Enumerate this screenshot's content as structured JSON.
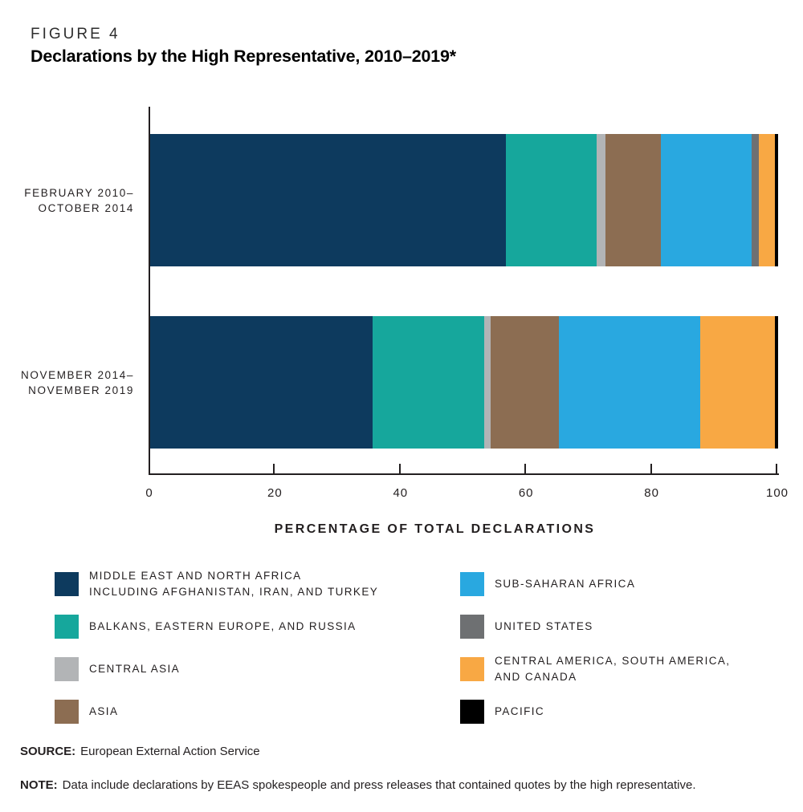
{
  "figure": {
    "label": "FIGURE 4",
    "title": "Declarations by the High Representative, 2010–2019*"
  },
  "chart_data": {
    "type": "bar",
    "orientation": "horizontal",
    "stacked": true,
    "grid": false,
    "legend_position": "bottom",
    "title": "Declarations by the High Representative, 2010–2019*",
    "xlabel": "PERCENTAGE OF TOTAL DECLARATIONS",
    "ylabel": "",
    "xlim": [
      0,
      100
    ],
    "xticks": [
      0,
      20,
      40,
      60,
      80,
      100
    ],
    "categories": [
      "FEBRUARY 2010–OCTOBER 2014",
      "NOVEMBER 2014–NOVEMBER 2019"
    ],
    "category_label_lines": [
      [
        "FEBRUARY 2010–",
        "OCTOBER 2014"
      ],
      [
        "NOVEMBER 2014–",
        "NOVEMBER 2019"
      ]
    ],
    "series": [
      {
        "name": "MIDDLE EAST AND NORTH AFRICA INCLUDING AFGHANISTAN, IRAN, AND TURKEY",
        "color": "#0D3A5E",
        "values": [
          56.6,
          35.4
        ]
      },
      {
        "name": "BALKANS, EASTERN EUROPE, AND RUSSIA",
        "color": "#16A79C",
        "values": [
          14.5,
          17.8
        ]
      },
      {
        "name": "CENTRAL ASIA",
        "color": "#B2B4B6",
        "values": [
          1.4,
          1.0
        ]
      },
      {
        "name": "ASIA",
        "color": "#8C6D52",
        "values": [
          8.8,
          10.9
        ]
      },
      {
        "name": "SUB-SAHARAN AFRICA",
        "color": "#29A8E0",
        "values": [
          14.5,
          22.5
        ]
      },
      {
        "name": "UNITED STATES",
        "color": "#6E7072",
        "values": [
          1.2,
          0
        ]
      },
      {
        "name": "CENTRAL AMERICA, SOUTH AMERICA, AND CANADA",
        "color": "#F8A844",
        "values": [
          2.5,
          11.9
        ]
      },
      {
        "name": "PACIFIC",
        "color": "#000000",
        "values": [
          0.5,
          0.5
        ]
      }
    ]
  },
  "legend": {
    "columns": [
      {
        "items": [
          {
            "key": "middle-east-north-africa",
            "color": "#0D3A5E",
            "lines": [
              "MIDDLE EAST AND NORTH AFRICA",
              "INCLUDING AFGHANISTAN, IRAN, AND TURKEY"
            ]
          },
          {
            "key": "balkans-eastern-europe-russia",
            "color": "#16A79C",
            "lines": [
              "BALKANS, EASTERN EUROPE, AND RUSSIA"
            ]
          },
          {
            "key": "central-asia",
            "color": "#B2B4B6",
            "lines": [
              "CENTRAL ASIA"
            ]
          },
          {
            "key": "asia",
            "color": "#8C6D52",
            "lines": [
              "ASIA"
            ]
          }
        ]
      },
      {
        "items": [
          {
            "key": "sub-saharan-africa",
            "color": "#29A8E0",
            "lines": [
              "SUB-SAHARAN AFRICA"
            ]
          },
          {
            "key": "united-states",
            "color": "#6E7072",
            "lines": [
              "UNITED STATES"
            ]
          },
          {
            "key": "central-america-south-america-canada",
            "color": "#F8A844",
            "lines": [
              "CENTRAL AMERICA, SOUTH AMERICA,",
              "AND CANADA"
            ]
          },
          {
            "key": "pacific",
            "color": "#000000",
            "lines": [
              "PACIFIC"
            ]
          }
        ]
      }
    ]
  },
  "source": {
    "label": "SOURCE:",
    "text": "European External Action Service"
  },
  "note": {
    "label": "NOTE:",
    "text": "Data include declarations by EEAS spokespeople and press releases that contained quotes by the high representative."
  }
}
